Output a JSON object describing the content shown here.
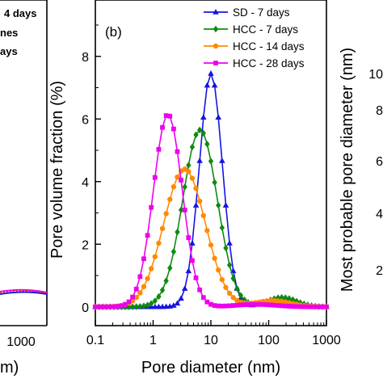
{
  "chart_data": {
    "type": "line",
    "panel_label": "(b)",
    "xlabel": "Pore diameter (nm)",
    "ylabel": "Pore volume fraction (%)",
    "right_ylabel": "Most probable pore diameter (nm)",
    "x_scale": "log",
    "xlim": [
      0.1,
      1000
    ],
    "ylim": [
      -0.6,
      9.8
    ],
    "x_ticks": [
      {
        "value": 0.1,
        "label": "0.1"
      },
      {
        "value": 1,
        "label": "1"
      },
      {
        "value": 10,
        "label": "10"
      },
      {
        "value": 100,
        "label": "100"
      },
      {
        "value": 1000,
        "label": "1000"
      }
    ],
    "y_ticks": [
      {
        "value": 0,
        "label": "0"
      },
      {
        "value": 2,
        "label": "2"
      },
      {
        "value": 4,
        "label": "4"
      },
      {
        "value": 6,
        "label": "6"
      },
      {
        "value": 8,
        "label": "8"
      }
    ],
    "right_y_ticks": [
      "10",
      "8",
      "6",
      "4",
      "2"
    ],
    "legend_position": "top-right",
    "series": [
      {
        "name": "SD - 7 days",
        "color": "#1515e0",
        "marker": "triangle",
        "peak": 10,
        "sigma": 0.2,
        "height": 7.45,
        "bump_center": 150,
        "bump_sigma": 0.25,
        "bump_height": 0.25
      },
      {
        "name": "HCC - 7 days",
        "color": "#0f8a0f",
        "marker": "diamond",
        "peak": 6.5,
        "sigma": 0.3,
        "height": 5.65,
        "bump_center": 170,
        "bump_sigma": 0.25,
        "bump_height": 0.3
      },
      {
        "name": "HCC - 14 days",
        "color": "#ff8a00",
        "marker": "circle",
        "peak": 3.5,
        "sigma": 0.36,
        "height": 4.4,
        "bump_center": 120,
        "bump_sigma": 0.3,
        "bump_height": 0.2
      },
      {
        "name": "HCC - 28 days",
        "color": "#ee00ee",
        "marker": "square",
        "peak": 1.8,
        "sigma": 0.25,
        "height": 6.15,
        "bump_center": 60,
        "bump_sigma": 0.35,
        "bump_height": 0.08
      }
    ],
    "left_panel_fragments": {
      "legend_texts": [
        "4 days",
        "nes",
        "ays"
      ],
      "x_tick": "1000",
      "xlabel_fragment": "m)",
      "line_colors": [
        "#ee00ee",
        "#1515e0",
        "#ee2222"
      ]
    }
  }
}
